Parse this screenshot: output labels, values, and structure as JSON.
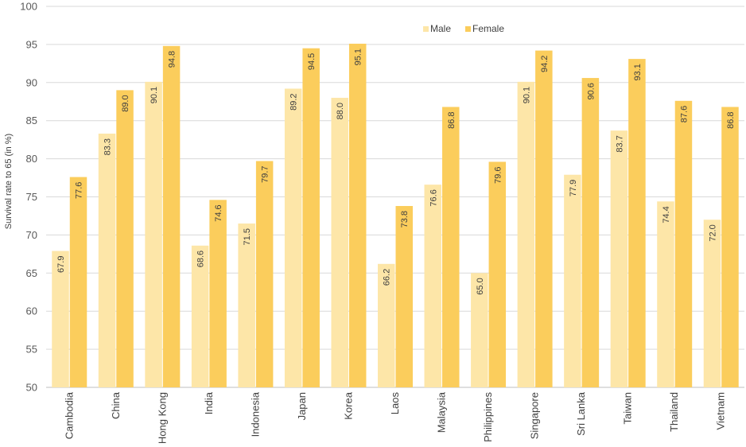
{
  "chart_data": {
    "type": "bar",
    "title": "",
    "xlabel": "",
    "ylabel": "Survival  rate to 65 (in %)",
    "ylim": [
      50,
      100
    ],
    "yticks": [
      50,
      55,
      60,
      65,
      70,
      75,
      80,
      85,
      90,
      95,
      100
    ],
    "grid": "horizontal",
    "legend_position": "top-right",
    "categories": [
      "Cambodia",
      "China",
      "Hong Kong",
      "India",
      "Indonesia",
      "Japan",
      "Korea",
      "Laos",
      "Malaysia",
      "Philippines",
      "Singapore",
      "Sri Lanka",
      "Taiwan",
      "Thailand",
      "Vietnam"
    ],
    "series": [
      {
        "name": "Male",
        "color": "#fde6a8",
        "values": [
          67.9,
          83.3,
          90.1,
          68.6,
          71.5,
          89.2,
          88.0,
          66.2,
          76.6,
          65.0,
          90.1,
          77.9,
          83.7,
          74.4,
          72.0
        ]
      },
      {
        "name": "Female",
        "color": "#fbcd5c",
        "values": [
          77.6,
          89.0,
          94.8,
          74.6,
          79.7,
          94.5,
          95.1,
          73.8,
          86.8,
          79.6,
          94.2,
          90.6,
          93.1,
          87.6,
          86.8
        ]
      }
    ]
  }
}
